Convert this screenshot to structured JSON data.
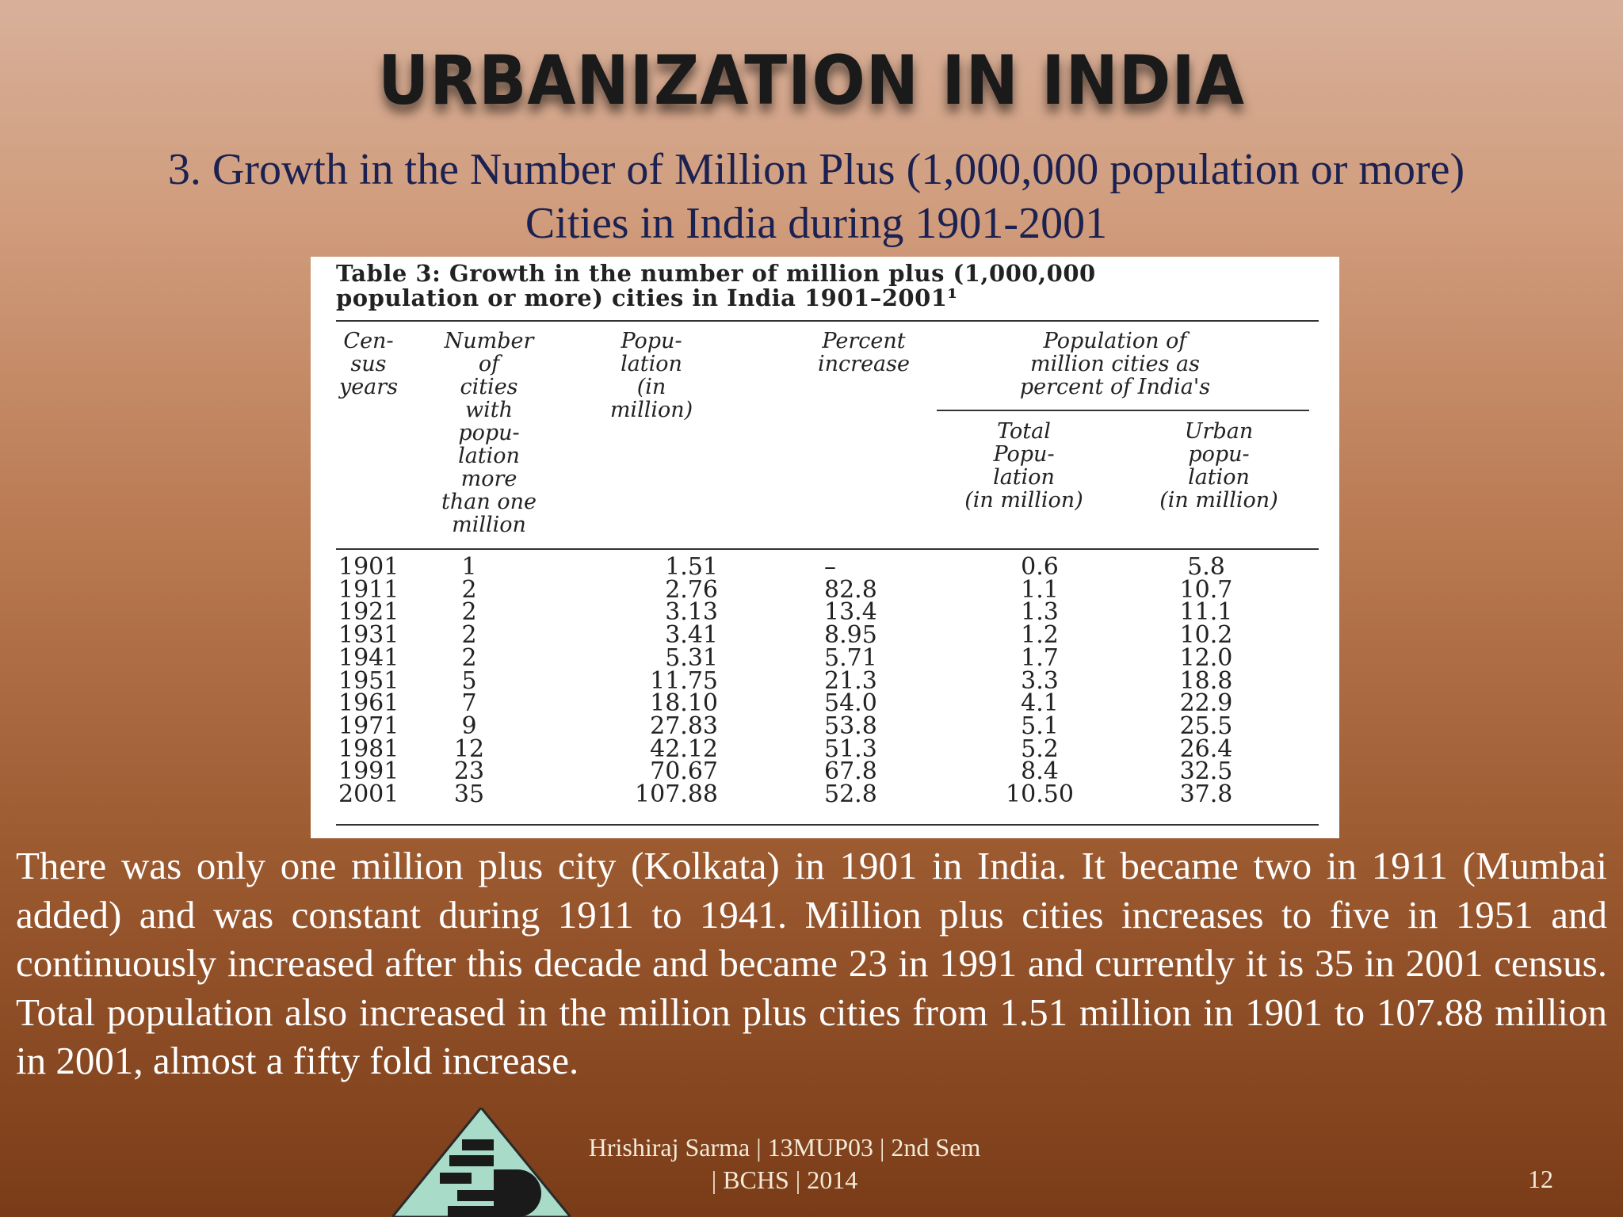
{
  "slide": {
    "title": "URBANIZATION IN INDIA",
    "subtitle_line1": "3. Growth in the Number of Million Plus (1,000,000 population or more)",
    "subtitle_line2": "Cities in India during 1901-2001",
    "body": "There was only one million plus city (Kolkata) in 1901 in India. It became two in 1911 (Mumbai added) and was constant during 1911 to 1941. Million plus cities increases to five in 1951 and continuously increased after this decade and became 23 in 1991 and currently it is 35 in 2001 census. Total population also increased in the million plus cities from 1.51 million in 1901 to 107.88 million in 2001, almost a fifty fold increase.",
    "footer_line1": "Hrishiraj Sarma | 13MUP03 | 2nd Sem",
    "footer_line2": "| BCHS | 2014",
    "page_number": "12"
  },
  "table": {
    "caption_line1": "Table 3:  Growth in the number of million plus (1,000,000",
    "caption_line2": "population or more) cities in India 1901–2001¹",
    "headers": {
      "census_years": "Cen-\nsus\nyears",
      "num_cities": "Number\nof\ncities\nwith\npopu-\nlation\nmore\nthan one\nmillion",
      "population": "Popu-\nlation\n(in\nmillion)",
      "percent_increase": "Percent\nincrease",
      "pop_share_group": "Population of\nmillion cities as\npercent of India's",
      "total_pop": "Total\nPopu-\nlation\n(in million)",
      "urban_pop": "Urban\npopu-\nlation\n(in million)"
    },
    "columns": {
      "years": "1901\n1911\n1921\n1931\n1941\n1951\n1961\n1971\n1981\n1991\n2001",
      "cities": "1\n2\n2\n2\n2\n5\n7\n9\n12\n23\n35",
      "population": "1.51\n2.76\n3.13\n3.41\n5.31\n11.75\n18.10\n27.83\n42.12\n70.67\n107.88",
      "percent_increase": "–\n82.8\n13.4\n8.95\n5.71\n21.3\n54.0\n53.8\n51.3\n67.8\n52.8",
      "total_pop": "0.6\n1.1\n1.3\n1.2\n1.7\n3.3\n4.1\n5.1\n5.2\n8.4\n10.50",
      "urban_pop": "5.8\n10.7\n11.1\n10.2\n12.0\n18.8\n22.9\n25.5\n26.4\n32.5\n37.8"
    }
  },
  "colors": {
    "title": "#1a1a1a",
    "subtitle": "#1b2150",
    "body_text": "#ffffff",
    "logo_triangle": "#a8dcc8",
    "logo_dark": "#1a1a1a"
  }
}
